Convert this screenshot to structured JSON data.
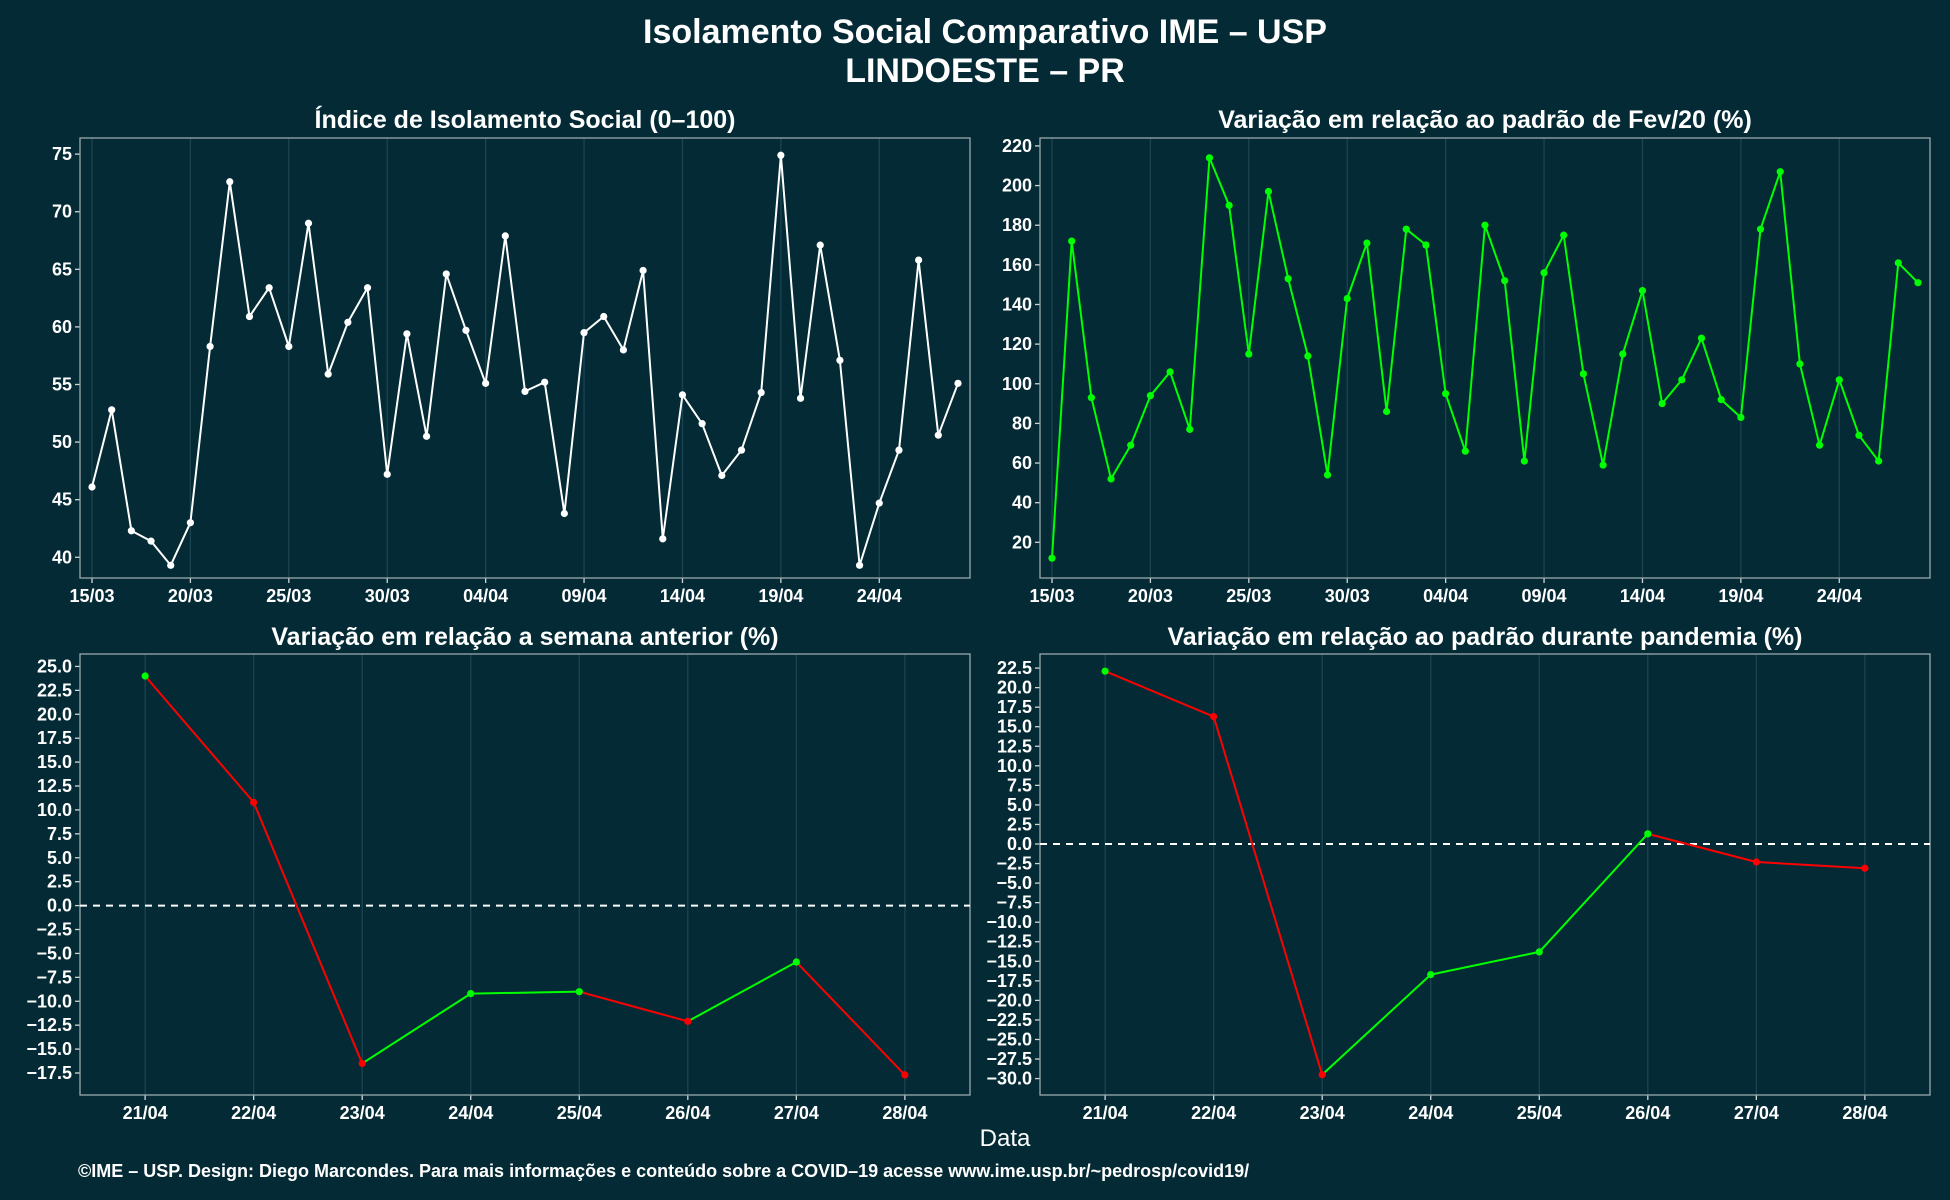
{
  "header": {
    "title_line1": "Isolamento Social Comparativo IME – USP",
    "title_line2": "LINDOESTE – PR"
  },
  "x_axis_title": "Data",
  "footer": "©IME – USP. Design: Diego Marcondes. Para mais informações e conteúdo sobre a COVID–19 acesse www.ime.usp.br/~pedrosp/covid19/",
  "colors": {
    "background": "#042b35",
    "white": "#ffffff",
    "green": "#00ff00",
    "red": "#ff0000"
  },
  "chart_data": [
    {
      "id": "isolation-index",
      "type": "line",
      "title": "Índice de Isolamento Social (0–100)",
      "color": "#ffffff",
      "x_start": "15/03",
      "x": [
        "15/03",
        "16/03",
        "17/03",
        "18/03",
        "19/03",
        "20/03",
        "21/03",
        "22/03",
        "23/03",
        "24/03",
        "25/03",
        "26/03",
        "27/03",
        "28/03",
        "29/03",
        "30/03",
        "31/03",
        "01/04",
        "02/04",
        "03/04",
        "04/04",
        "05/04",
        "06/04",
        "07/04",
        "08/04",
        "09/04",
        "10/04",
        "11/04",
        "12/04",
        "13/04",
        "14/04",
        "15/04",
        "16/04",
        "17/04",
        "18/04",
        "19/04",
        "20/04",
        "21/04",
        "22/04",
        "23/04",
        "24/04",
        "25/04",
        "26/04",
        "27/04",
        "28/04"
      ],
      "values": [
        46.1,
        52.8,
        42.3,
        41.4,
        39.3,
        43.0,
        58.3,
        72.6,
        60.9,
        63.4,
        58.3,
        69.0,
        55.9,
        60.4,
        63.4,
        47.2,
        59.4,
        50.5,
        64.6,
        59.7,
        55.1,
        67.9,
        54.4,
        55.2,
        43.8,
        59.5,
        60.9,
        58.0,
        64.9,
        41.6,
        54.1,
        51.6,
        47.1,
        49.3,
        54.3,
        74.9,
        53.8,
        67.1,
        57.1,
        39.3,
        44.7,
        49.3,
        65.8,
        50.6,
        55.1
      ],
      "x_ticks": [
        "15/03",
        "20/03",
        "25/03",
        "30/03",
        "04/04",
        "09/04",
        "14/04",
        "19/04",
        "24/04"
      ],
      "y_ticks": [
        40,
        45,
        50,
        55,
        60,
        65,
        70,
        75
      ],
      "ylim": [
        38.2,
        76.4
      ]
    },
    {
      "id": "variation-feb",
      "type": "line",
      "title": "Variação em relação ao padrão de Fev/20 (%)",
      "color": "#00ff00",
      "x_start": "15/03",
      "x": [
        "15/03",
        "16/03",
        "17/03",
        "18/03",
        "19/03",
        "20/03",
        "21/03",
        "22/03",
        "23/03",
        "24/03",
        "25/03",
        "26/03",
        "27/03",
        "28/03",
        "29/03",
        "30/03",
        "31/03",
        "01/04",
        "02/04",
        "03/04",
        "04/04",
        "05/04",
        "06/04",
        "07/04",
        "08/04",
        "09/04",
        "10/04",
        "11/04",
        "12/04",
        "13/04",
        "14/04",
        "15/04",
        "16/04",
        "17/04",
        "18/04",
        "19/04",
        "20/04",
        "21/04",
        "22/04",
        "23/04",
        "24/04",
        "25/04",
        "26/04",
        "27/04",
        "28/04"
      ],
      "values": [
        12,
        172,
        93,
        52,
        69,
        94,
        106,
        77,
        214,
        190,
        115,
        197,
        153,
        114,
        54,
        143,
        171,
        86,
        178,
        170,
        95,
        66,
        180,
        152,
        61,
        156,
        175,
        105,
        59,
        115,
        147,
        90,
        102,
        123,
        92,
        83,
        178,
        207,
        110,
        69,
        102,
        74,
        61,
        161,
        151
      ],
      "x_ticks": [
        "15/03",
        "20/03",
        "25/03",
        "30/03",
        "04/04",
        "09/04",
        "14/04",
        "19/04",
        "24/04"
      ],
      "y_ticks": [
        20,
        40,
        60,
        80,
        100,
        120,
        140,
        160,
        180,
        200,
        220
      ],
      "ylim": [
        2,
        224
      ]
    },
    {
      "id": "variation-week",
      "type": "line",
      "title": "Variação em relação a semana anterior (%)",
      "x": [
        "21/04",
        "22/04",
        "23/04",
        "24/04",
        "25/04",
        "26/04",
        "27/04",
        "28/04"
      ],
      "values": [
        24.0,
        10.8,
        -16.5,
        -9.2,
        -9.0,
        -12.1,
        -5.9,
        -17.7
      ],
      "y_ticks": [
        -17.5,
        -15,
        -12.5,
        -10,
        -7.5,
        -5,
        -2.5,
        0,
        2.5,
        5,
        7.5,
        10,
        12.5,
        15,
        17.5,
        20,
        22.5,
        25
      ],
      "y_tick_labels": [
        "−17.5",
        "−15.0",
        "−12.5",
        "−10.0",
        "−7.5",
        "−5.0",
        "−2.5",
        "0.0",
        "2.5",
        "5.0",
        "7.5",
        "10.0",
        "12.5",
        "15.0",
        "17.5",
        "20.0",
        "22.5",
        "25.0"
      ],
      "ylim": [
        -19.8,
        26.3
      ],
      "reference_line": 0
    },
    {
      "id": "variation-pandemic",
      "type": "line",
      "title": "Variação em relação ao padrão durante pandemia (%)",
      "x": [
        "21/04",
        "22/04",
        "23/04",
        "24/04",
        "25/04",
        "26/04",
        "27/04",
        "28/04"
      ],
      "values": [
        22.1,
        16.3,
        -29.5,
        -16.7,
        -13.8,
        1.3,
        -2.3,
        -3.1
      ],
      "y_ticks": [
        -30,
        -27.5,
        -25,
        -22.5,
        -20,
        -17.5,
        -15,
        -12.5,
        -10,
        -7.5,
        -5,
        -2.5,
        0,
        2.5,
        5,
        7.5,
        10,
        12.5,
        15,
        17.5,
        20,
        22.5
      ],
      "y_tick_labels": [
        "−30.0",
        "−27.5",
        "−25.0",
        "−22.5",
        "−20.0",
        "−17.5",
        "−15.0",
        "−12.5",
        "−10.0",
        "−7.5",
        "−5.0",
        "−2.5",
        "0.0",
        "2.5",
        "5.0",
        "7.5",
        "10.0",
        "12.5",
        "15.0",
        "17.5",
        "20.0",
        "22.5"
      ],
      "ylim": [
        -32.1,
        24.3
      ],
      "reference_line": 0
    }
  ]
}
